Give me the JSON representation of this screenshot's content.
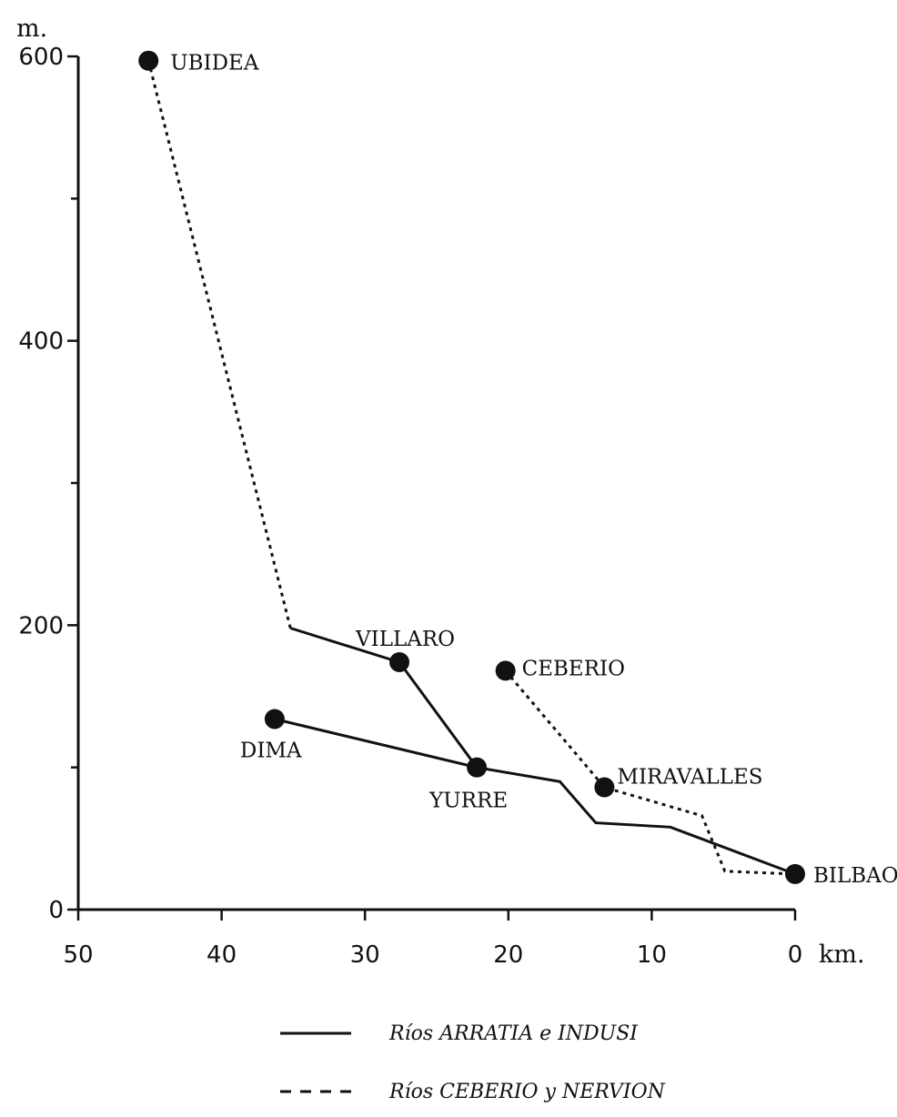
{
  "chart_data": {
    "type": "line",
    "title": "",
    "xlabel": "km.",
    "ylabel": "m.",
    "xlim": [
      50,
      0
    ],
    "ylim": [
      0,
      600
    ],
    "x_ticks": [
      50,
      40,
      30,
      20,
      10,
      0
    ],
    "y_tick_labels": [
      0,
      200,
      400,
      600
    ],
    "y_minor_ticks": [
      100,
      300,
      500
    ],
    "series": [
      {
        "name": "Ríos ARRATIA e INDUSI",
        "style": "solid",
        "segments": [
          [
            [
              35.2,
              198
            ],
            [
              27.6,
              174
            ],
            [
              22.2,
              100
            ]
          ],
          [
            [
              36.3,
              134
            ],
            [
              22.2,
              100
            ],
            [
              16.4,
              90
            ],
            [
              13.9,
              61
            ],
            [
              8.7,
              58
            ],
            [
              0,
              25
            ]
          ]
        ]
      },
      {
        "name": "Ríos CEBERIO y NERVION",
        "style": "dotted",
        "segments": [
          [
            [
              45.1,
              597
            ],
            [
              35.2,
              198
            ]
          ],
          [
            [
              20.2,
              168
            ],
            [
              13.3,
              86
            ],
            [
              6.5,
              66
            ],
            [
              4.9,
              27
            ],
            [
              0,
              25
            ]
          ]
        ]
      }
    ],
    "places": [
      {
        "label": "UBIDEA",
        "x": 45.1,
        "y": 597
      },
      {
        "label": "VILLARO",
        "x": 27.6,
        "y": 174
      },
      {
        "label": "DIMA",
        "x": 36.3,
        "y": 134
      },
      {
        "label": "YURRE",
        "x": 22.2,
        "y": 100
      },
      {
        "label": "CEBERIO",
        "x": 20.2,
        "y": 168
      },
      {
        "label": "MIRAVALLES",
        "x": 13.3,
        "y": 86
      },
      {
        "label": "BILBAO",
        "x": 0,
        "y": 25
      }
    ]
  }
}
